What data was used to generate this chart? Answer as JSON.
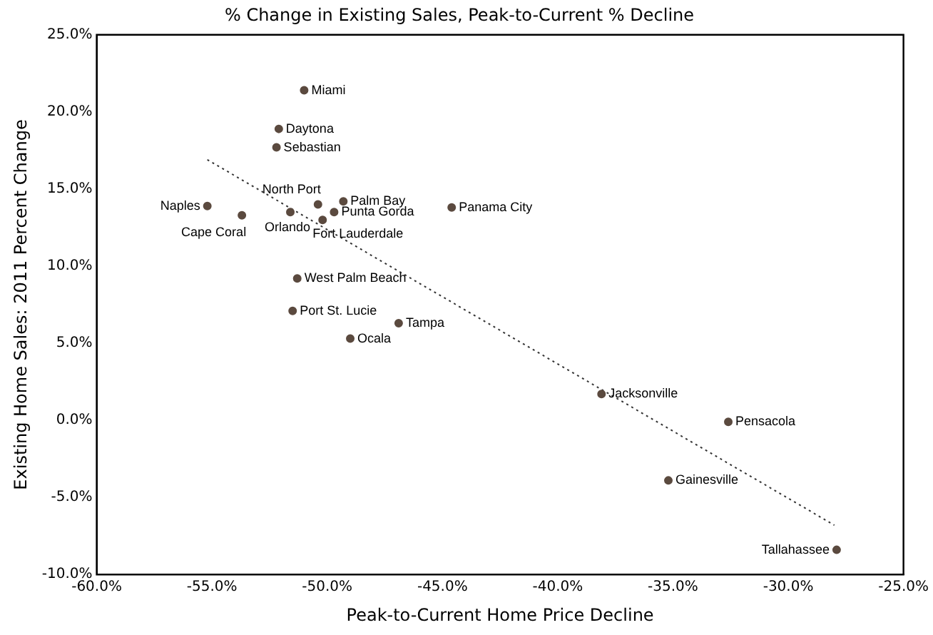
{
  "chart_data": {
    "type": "scatter",
    "title": "% Change in Existing Sales, Peak-to-Current % Decline",
    "xlabel": "Peak-to-Current Home Price Decline",
    "ylabel": "Existing Home Sales: 2011 Percent Change",
    "xlim": [
      -60,
      -25
    ],
    "ylim": [
      -10,
      25
    ],
    "xticks": [
      {
        "value": -60,
        "label": "-60.0%"
      },
      {
        "value": -55,
        "label": "-55.0%"
      },
      {
        "value": -50,
        "label": "-50.0%"
      },
      {
        "value": -45,
        "label": "-45.0%"
      },
      {
        "value": -40,
        "label": "-40.0%"
      },
      {
        "value": -35,
        "label": "-35.0%"
      },
      {
        "value": -30,
        "label": "-30.0%"
      },
      {
        "value": -25,
        "label": "-25.0%"
      }
    ],
    "yticks": [
      {
        "value": -10,
        "label": "-10.0%"
      },
      {
        "value": -5,
        "label": "-5.0%"
      },
      {
        "value": 0,
        "label": "0.0%"
      },
      {
        "value": 5,
        "label": "5.0%"
      },
      {
        "value": 10,
        "label": "10.0%"
      },
      {
        "value": 15,
        "label": "15.0%"
      },
      {
        "value": 20,
        "label": "20.0%"
      },
      {
        "value": 25,
        "label": "25.0%"
      }
    ],
    "grid": false,
    "legend": false,
    "series": [
      {
        "color": "#5b4a3f",
        "marker": "circle",
        "x": [
          -51.0,
          -52.1,
          -52.2,
          -55.2,
          -53.7,
          -51.6,
          -50.4,
          -49.3,
          -49.7,
          -50.2,
          -44.6,
          -51.3,
          -51.5,
          -46.9,
          -49.0,
          -38.1,
          -32.6,
          -35.2,
          -27.9
        ],
        "values": [
          21.4,
          18.9,
          17.7,
          13.9,
          13.3,
          13.5,
          14.0,
          14.2,
          13.5,
          13.0,
          13.8,
          9.2,
          7.1,
          6.3,
          5.3,
          1.7,
          -0.1,
          -3.9,
          -8.4
        ]
      },
      {
        "type": "line",
        "color": "#333333",
        "marker": "none",
        "line_style": "dotted",
        "x": [
          -55.2,
          -28.0
        ],
        "values": [
          16.9,
          -6.8
        ]
      }
    ],
    "annotations": [
      {
        "text": "Miami",
        "x": -51.0,
        "y": 21.4
      },
      {
        "text": "Daytona",
        "x": -52.1,
        "y": 18.9
      },
      {
        "text": "Sebastian",
        "x": -52.2,
        "y": 17.7
      },
      {
        "text": "Naples",
        "x": -55.2,
        "y": 13.9
      },
      {
        "text": "Cape Coral",
        "x": -53.7,
        "y": 13.3
      },
      {
        "text": "Orlando",
        "x": -51.6,
        "y": 13.5
      },
      {
        "text": "North Port",
        "x": -50.4,
        "y": 14.0
      },
      {
        "text": "Palm Bay",
        "x": -49.3,
        "y": 14.2
      },
      {
        "text": "Punta Gorda",
        "x": -49.7,
        "y": 13.5
      },
      {
        "text": "Fort Lauderdale",
        "x": -50.2,
        "y": 13.0
      },
      {
        "text": "Panama City",
        "x": -44.6,
        "y": 13.8
      },
      {
        "text": "West Palm Beach",
        "x": -51.3,
        "y": 9.2
      },
      {
        "text": "Port St. Lucie",
        "x": -51.5,
        "y": 7.1
      },
      {
        "text": "Tampa",
        "x": -46.9,
        "y": 6.3
      },
      {
        "text": "Ocala",
        "x": -49.0,
        "y": 5.3
      },
      {
        "text": "Jacksonville",
        "x": -38.1,
        "y": 1.7
      },
      {
        "text": "Pensacola",
        "x": -32.6,
        "y": -0.1
      },
      {
        "text": "Gainesville",
        "x": -35.2,
        "y": -3.9
      },
      {
        "text": "Tallahassee",
        "x": -27.9,
        "y": -8.4
      }
    ]
  }
}
